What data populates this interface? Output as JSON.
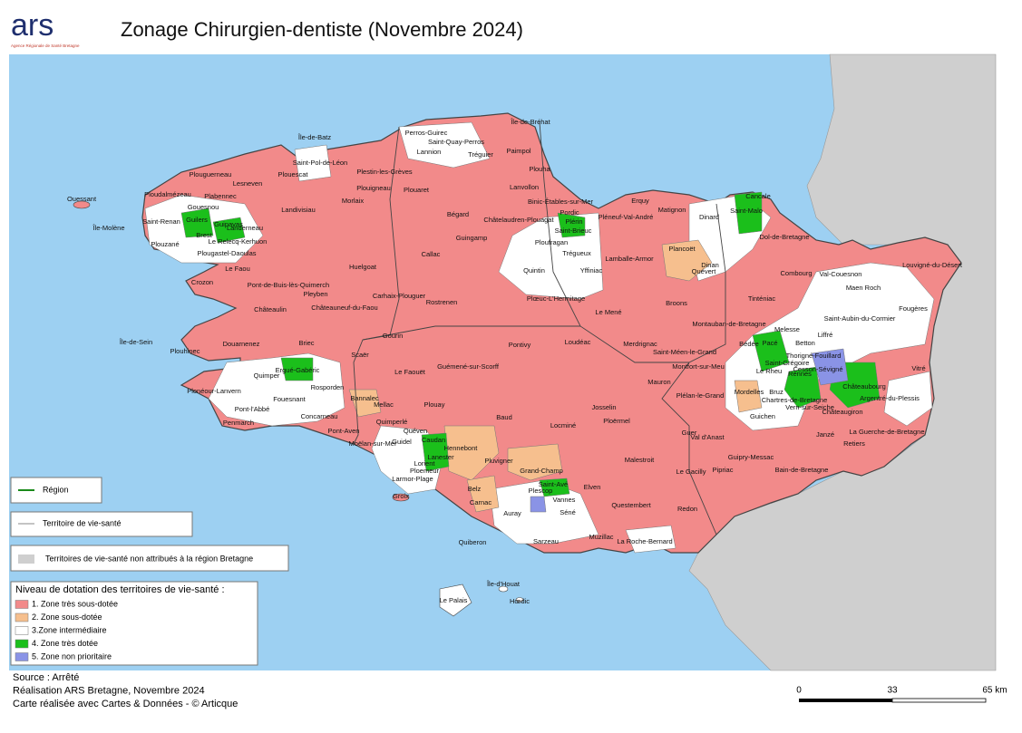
{
  "header": {
    "logo": "ars",
    "logo_subtitle": "Agence Régionale de Santé Bretagne",
    "title": "Zonage Chirurgien-dentiste (Novembre 2024)"
  },
  "map": {
    "places": [
      "Île-de-Bréhat",
      "Perros-Guirec",
      "Saint-Quay-Perros",
      "Lannion",
      "Tréguier",
      "Paimpol",
      "Île-de-Batz",
      "Saint-Pol-de-Léon",
      "Plouescat",
      "Plestin-les-Grèves",
      "Plouigneau",
      "Plouaret",
      "Morlaix",
      "Lesneven",
      "Ploudalmézeau",
      "Plouguerneau",
      "Plabennec",
      "Gouesnou",
      "Landivisiau",
      "Landerneau",
      "Guipavas",
      "Guilers",
      "Saint-Renan",
      "Brest",
      "Le Relecq-Kerhuon",
      "Plouzané",
      "Plougastel-Daoulas",
      "Ouessant",
      "Île-Molène",
      "Le Faou",
      "Crozon",
      "Pont-de-Buis-lès-Quimerch",
      "Pleyben",
      "Huelgoat",
      "Carhaix-Plouguer",
      "Châteaulin",
      "Châteauneuf-du-Faou",
      "Rostrenen",
      "Callac",
      "Guingamp",
      "Bégard",
      "Lanvollon",
      "Plouha",
      "Binic-Étables-sur-Mer",
      "Châtelaudren-Plouagat",
      "Pordic",
      "Plérin",
      "Saint-Brieuc",
      "Ploufragan",
      "Trégueux",
      "Quintin",
      "Yffiniac",
      "Lamballe-Armor",
      "Erquy",
      "Pléneuf-Val-André",
      "Matignon",
      "Plancoët",
      "Quévert",
      "Dinan",
      "Dinard",
      "Saint-Malo",
      "Cancale",
      "Dol-de-Bretagne",
      "Combourg",
      "Val-Couesnon",
      "Louvigné-du-Désert",
      "Maen Roch",
      "Fougères",
      "Saint-Aubin-du-Cormier",
      "Tinténiac",
      "Broons",
      "Le Mené",
      "Plœuc-L'Hermitage",
      "Montauban-de-Bretagne",
      "Melesse",
      "Liffré",
      "Betton",
      "Bédée",
      "Pacé",
      "Montfort-sur-Meu",
      "Saint-Méen-le-Grand",
      "Loudéac",
      "Merdrignac",
      "Pontivy",
      "Gourin",
      "Guémené-sur-Scorff",
      "Le Faouët",
      "Scaër",
      "Briec",
      "Douarnenez",
      "Plouhinec",
      "Île-de-Sein",
      "Quimper",
      "Ergué-Gabéric",
      "Rosporden",
      "Fouesnant",
      "Plonéour-Lanvern",
      "Pont-l'Abbé",
      "Penmarch",
      "Bannalec",
      "Mellac",
      "Quimperlé",
      "Concarneau",
      "Pont-Aven",
      "Moëlan-sur-Mer",
      "Plouay",
      "Baud",
      "Locminé",
      "Josselin",
      "Ploërmel",
      "Mauron",
      "Plélan-le-Grand",
      "Guer",
      "Val d'Anast",
      "Guichen",
      "Janzé",
      "Retiers",
      "Vitré",
      "Châteaubourg",
      "Argentré-du-Plessis",
      "La Guerche-de-Bretagne",
      "Guipry-Messac",
      "Bain-de-Bretagne",
      "Pipriac",
      "Le Gacilly",
      "Malestroit",
      "Questembert",
      "Redon",
      "Elven",
      "Grand-Champ",
      "Pluvigner",
      "Hennebont",
      "Lorient",
      "Lanester",
      "Caudan",
      "Guidel",
      "Quéven",
      "Ploemeur",
      "Larmor-Plage",
      "Belz",
      "Carnac",
      "Auray",
      "Vannes",
      "Saint-Avé",
      "Plescop",
      "Séné",
      "Muzillac",
      "La Roche-Bernard",
      "Quiberon",
      "Sarzeau",
      "Groix",
      "Le Palais",
      "Île-d'Houat",
      "Hœdic",
      "Rennes",
      "Saint-Grégoire",
      "Cesson-Sévigné",
      "Thorigné-Fouillard",
      "Vern-sur-Seiche",
      "Chartres-de-Bretagne",
      "Bruz",
      "Mordelles",
      "Le Rheu",
      "Châteaugiron"
    ]
  },
  "legend": {
    "region": "Région",
    "territory": "Territoire de vie-santé",
    "unassigned": "Territoires de vie-santé non attribués à la région Bretagne",
    "levels_title": "Niveau de dotation des territoires de vie-santé :",
    "levels": [
      {
        "label": "1. Zone très sous-dotée",
        "color": "#f28a8a"
      },
      {
        "label": "2. Zone sous-dotée",
        "color": "#f6bf8e"
      },
      {
        "label": "3.Zone intermédiaire",
        "color": "#ffffff"
      },
      {
        "label": "4. Zone très dotée",
        "color": "#1bbf1b"
      },
      {
        "label": "5. Zone non prioritaire",
        "color": "#8a93e6"
      }
    ]
  },
  "footer": {
    "lines": [
      "Source : Arrêté",
      "Réalisation ARS Bretagne, Novembre 2024",
      "Carte réalisée avec Cartes & Données - © Articque"
    ]
  },
  "scale": {
    "labels": [
      "0",
      "33",
      "65 km"
    ]
  }
}
